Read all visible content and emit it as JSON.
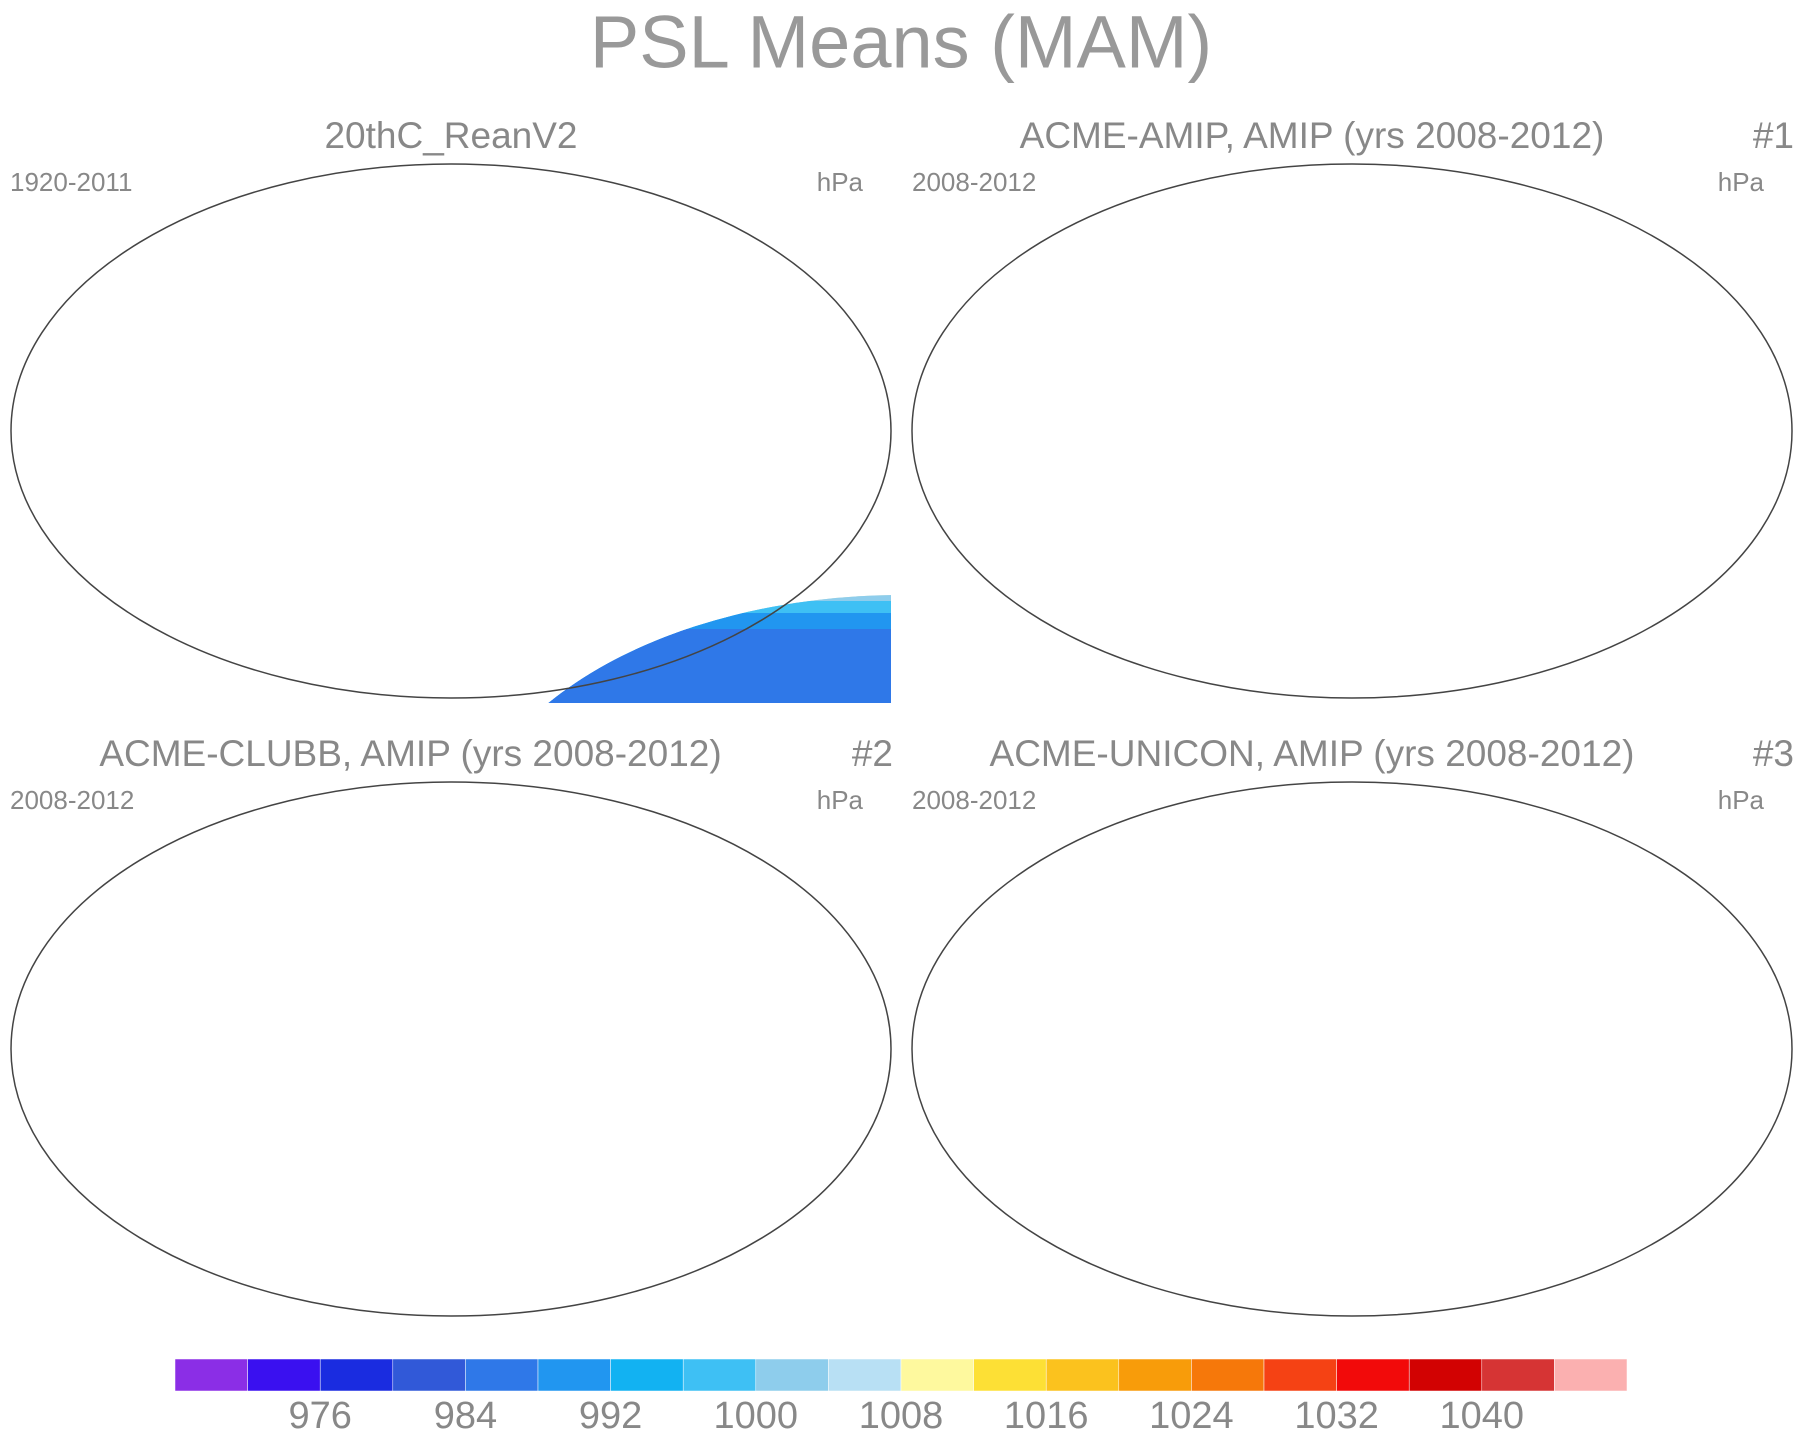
{
  "chart_data": {
    "type": "map",
    "title": "PSL Means (MAM)",
    "panels": [
      {
        "title": "20thC_ReanV2",
        "left": "1920-2011",
        "right": "hPa"
      },
      {
        "title": "ACME-AMIP, AMIP (yrs 2008-2012)",
        "left": "2008-2012",
        "right": "hPa",
        "number": "#1"
      },
      {
        "title": "ACME-CLUBB, AMIP (yrs 2008-2012)",
        "left": "2008-2012",
        "right": "hPa",
        "number": "#2"
      },
      {
        "title": "ACME-UNICON, AMIP (yrs 2008-2012)",
        "left": "2008-2012",
        "right": "hPa",
        "number": "#3"
      }
    ],
    "colorbar": {
      "lim": [
        968,
        1048
      ],
      "ticks": [
        976,
        984,
        992,
        1000,
        1008,
        1016,
        1024,
        1032,
        1040
      ],
      "colors": [
        "#8b2ee6",
        "#3a10f0",
        "#1a2ce0",
        "#3159d8",
        "#2f78e8",
        "#2196f0",
        "#12b2f2",
        "#3ec0f4",
        "#8ecdec",
        "#b8e0f4",
        "#fef99e",
        "#fde035",
        "#fbc21e",
        "#f89c0a",
        "#f6780a",
        "#f54214",
        "#f20a0a",
        "#d20202",
        "#d63434",
        "#fbb0b0"
      ]
    }
  }
}
